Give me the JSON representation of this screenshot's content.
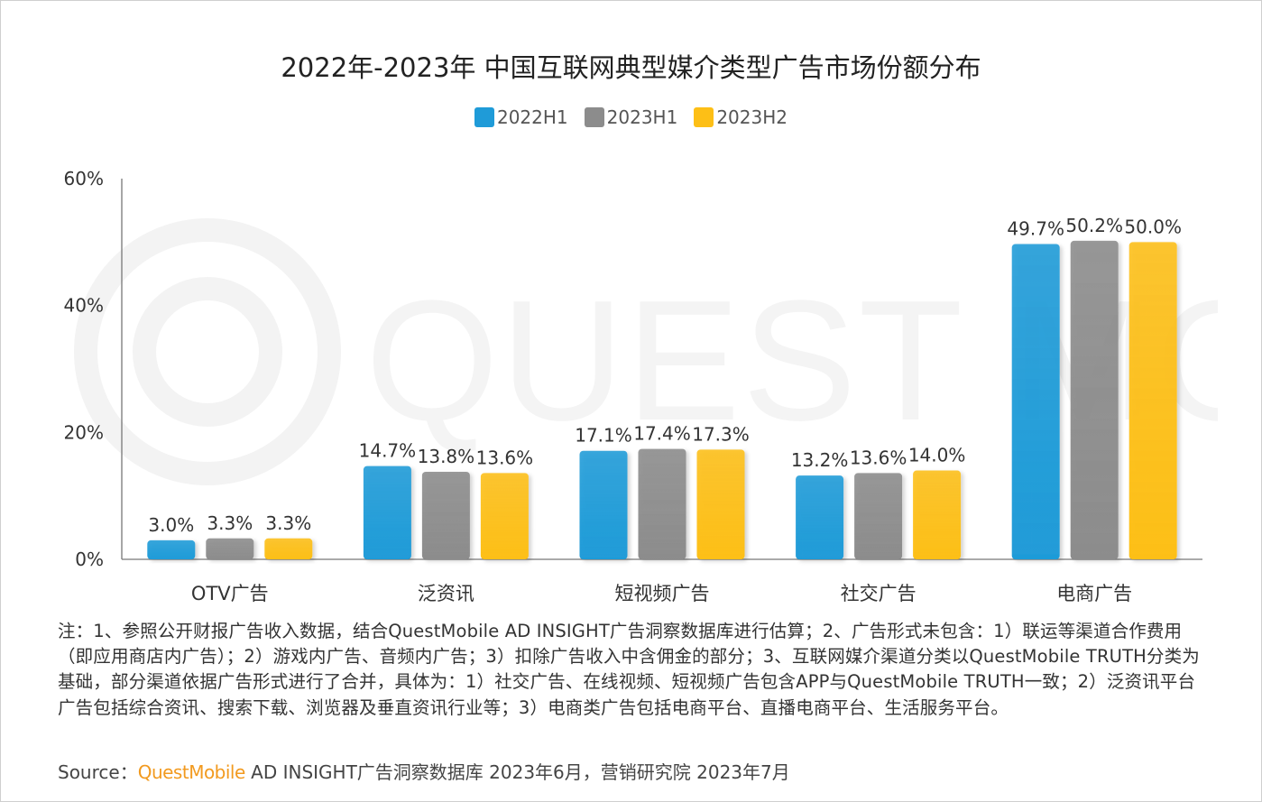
{
  "chart_data": {
    "type": "bar",
    "title": "2022年-2023年 中国互联网典型媒介类型广告市场份额分布",
    "categories": [
      "OTV广告",
      "泛资讯",
      "短视频广告",
      "社交广告",
      "电商广告"
    ],
    "series": [
      {
        "name": "2022H1",
        "values": [
          3.0,
          14.7,
          17.1,
          13.2,
          49.7
        ],
        "labels": [
          "3.0%",
          "14.7%",
          "17.1%",
          "13.2%",
          "49.7%"
        ],
        "color": "#1f9bd8"
      },
      {
        "name": "2023H1",
        "values": [
          3.3,
          13.8,
          17.4,
          13.6,
          50.2
        ],
        "labels": [
          "3.3%",
          "13.8%",
          "17.4%",
          "13.6%",
          "50.2%"
        ],
        "color": "#8c8c8c"
      },
      {
        "name": "2023H2",
        "values": [
          3.3,
          13.6,
          17.3,
          14.0,
          50.0
        ],
        "labels": [
          "3.3%",
          "13.6%",
          "17.3%",
          "14.0%",
          "50.0%"
        ],
        "color": "#fdbf16"
      }
    ],
    "ylim": [
      0,
      60
    ],
    "yticks": [
      0,
      20,
      40,
      60
    ],
    "ytick_labels": [
      "0%",
      "20%",
      "40%",
      "60%"
    ],
    "xlabel": "",
    "ylabel": "",
    "grid": false,
    "legend_position": "top-center"
  },
  "note": "注：1、参照公开财报广告收入数据，结合QuestMobile AD INSIGHT广告洞察数据库进行估算；2、广告形式未包含：1）联运等渠道合作费用（即应用商店内广告）；2）游戏内广告、音频内广告；3）扣除广告收入中含佣金的部分；3、互联网媒介渠道分类以QuestMobile TRUTH分类为基础，部分渠道依据广告形式进行了合并，具体为：1）社交广告、在线视频、短视频广告包含APP与QuestMobile TRUTH一致；2）泛资讯平台广告包括综合资讯、搜索下载、浏览器及垂直资讯行业等；3）电商类广告包括电商平台、直播电商平台、生活服务平台。",
  "source": {
    "prefix": "Source：",
    "brand": "QuestMobile",
    "rest": " AD INSIGHT广告洞察数据库 2023年6月，营销研究院 2023年7月"
  },
  "watermark": {
    "text": "QUEST MOBILE"
  }
}
